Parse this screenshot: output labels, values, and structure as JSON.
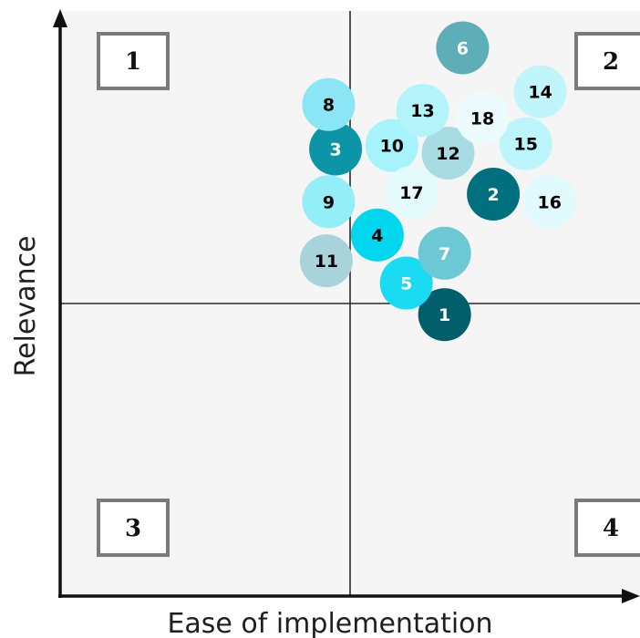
{
  "chart_data": {
    "type": "scatter",
    "title": "",
    "xlabel": "Ease of implementation",
    "ylabel": "Relevance",
    "xlim": [
      0,
      100
    ],
    "ylim": [
      0,
      100
    ],
    "grid": false,
    "quadrant_dividers": {
      "x": 50,
      "y": 50
    },
    "quadrant_labels": [
      {
        "label": "1",
        "position": "top-left"
      },
      {
        "label": "2",
        "position": "top-right"
      },
      {
        "label": "3",
        "position": "bottom-left"
      },
      {
        "label": "4",
        "position": "bottom-right"
      }
    ],
    "points": [
      {
        "label": "1",
        "x": 66.3,
        "y": 48.1,
        "color": "#005f6b",
        "text_color": "#ffffff"
      },
      {
        "label": "2",
        "x": 74.7,
        "y": 68.7,
        "color": "#00707e",
        "text_color": "#ffffff"
      },
      {
        "label": "3",
        "x": 47.5,
        "y": 76.4,
        "color": "#0b95a6",
        "text_color": "#ffffff"
      },
      {
        "label": "4",
        "x": 54.7,
        "y": 61.7,
        "color": "#00d7ee",
        "text_color": "#000000"
      },
      {
        "label": "5",
        "x": 59.7,
        "y": 53.5,
        "color": "#19dcf3",
        "text_color": "#ffffff"
      },
      {
        "label": "6",
        "x": 69.4,
        "y": 93.7,
        "color": "#5eaeb8",
        "text_color": "#ffffff"
      },
      {
        "label": "7",
        "x": 66.3,
        "y": 58.6,
        "color": "#6cc8d4",
        "text_color": "#ffffff"
      },
      {
        "label": "8",
        "x": 46.3,
        "y": 84.0,
        "color": "#8ae6f5",
        "text_color": "#000000"
      },
      {
        "label": "9",
        "x": 46.3,
        "y": 67.4,
        "color": "#93eef8",
        "text_color": "#000000"
      },
      {
        "label": "10",
        "x": 57.2,
        "y": 77.0,
        "color": "#a6f3fb",
        "text_color": "#000000"
      },
      {
        "label": "11",
        "x": 45.9,
        "y": 57.3,
        "color": "#a9d3da",
        "text_color": "#000000"
      },
      {
        "label": "12",
        "x": 66.9,
        "y": 75.7,
        "color": "#a8dce3",
        "text_color": "#000000"
      },
      {
        "label": "13",
        "x": 62.5,
        "y": 83.0,
        "color": "#b3f4fa",
        "text_color": "#000000"
      },
      {
        "label": "14",
        "x": 82.8,
        "y": 86.2,
        "color": "#bff5fb",
        "text_color": "#000000"
      },
      {
        "label": "15",
        "x": 80.3,
        "y": 77.3,
        "color": "#bcf5fb",
        "text_color": "#000000"
      },
      {
        "label": "16",
        "x": 84.4,
        "y": 67.4,
        "color": "#e0fafd",
        "text_color": "#000000"
      },
      {
        "label": "17",
        "x": 60.6,
        "y": 69.0,
        "color": "#e4fbfe",
        "text_color": "#000000"
      },
      {
        "label": "18",
        "x": 72.8,
        "y": 81.7,
        "color": "#ecfcfe",
        "text_color": "#000000"
      }
    ]
  }
}
